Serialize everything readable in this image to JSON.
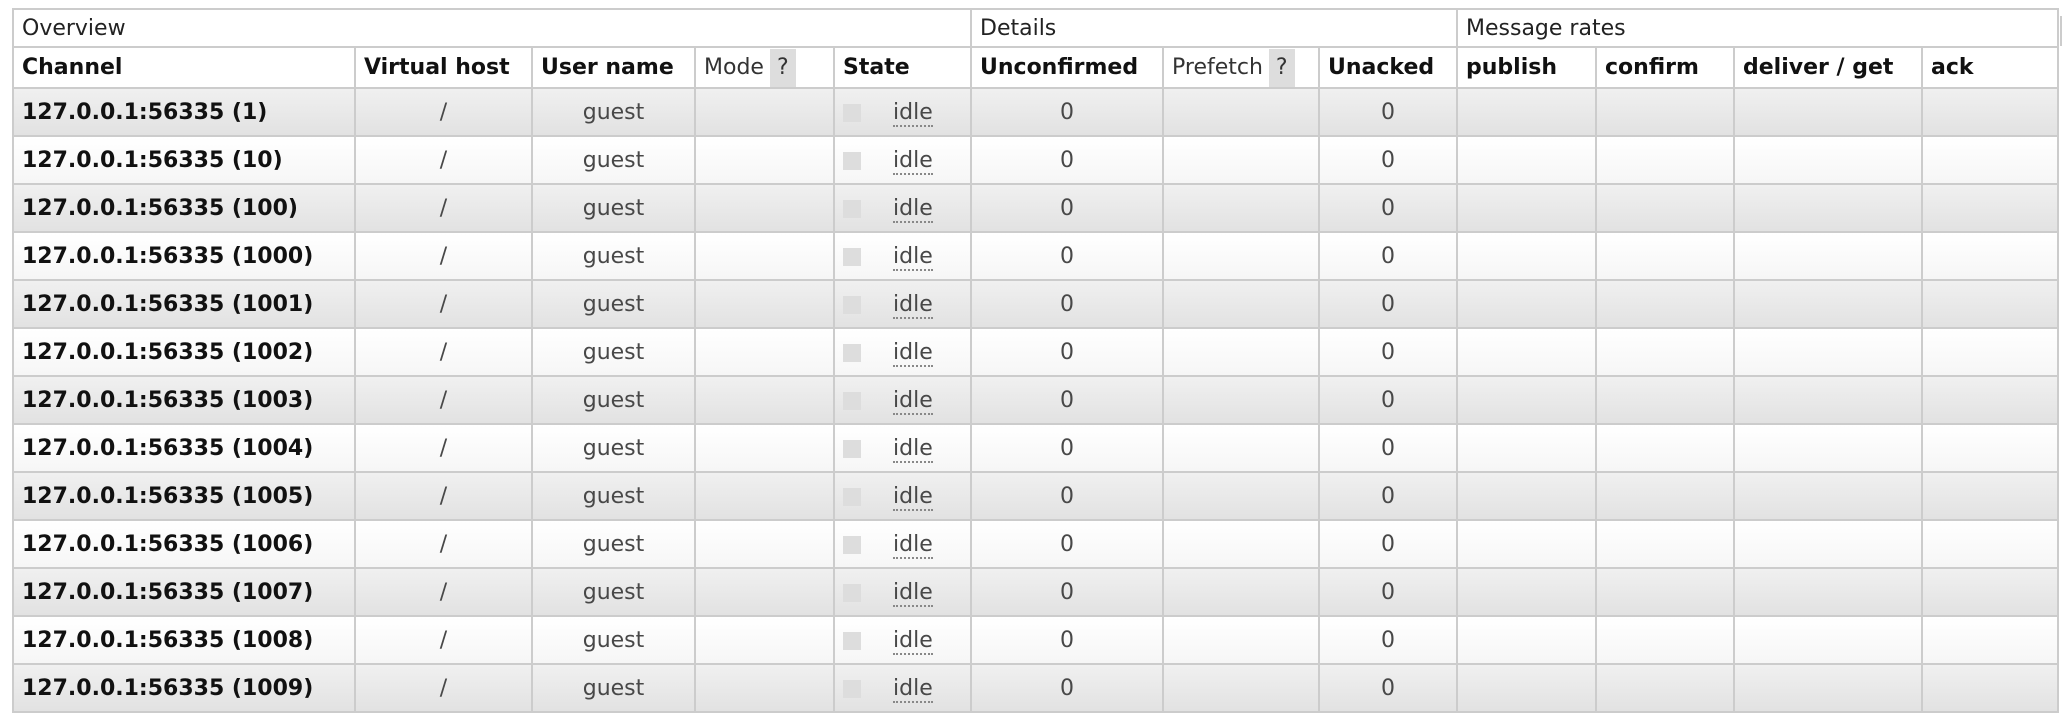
{
  "groups": {
    "overview": "Overview",
    "details": "Details",
    "message_rates": "Message rates"
  },
  "columns": {
    "channel": "Channel",
    "virtual_host": "Virtual host",
    "user_name": "User name",
    "mode": "Mode",
    "help": "?",
    "state": "State",
    "unconfirmed": "Unconfirmed",
    "prefetch": "Prefetch",
    "unacked": "Unacked",
    "publish": "publish",
    "confirm": "confirm",
    "deliver_get": "deliver / get",
    "ack": "ack"
  },
  "rows": [
    {
      "channel": "127.0.0.1:56335 (1)",
      "vhost": "/",
      "user": "guest",
      "mode": "",
      "state": "idle",
      "unconfirmed": "0",
      "prefetch": "",
      "unacked": "0"
    },
    {
      "channel": "127.0.0.1:56335 (10)",
      "vhost": "/",
      "user": "guest",
      "mode": "",
      "state": "idle",
      "unconfirmed": "0",
      "prefetch": "",
      "unacked": "0"
    },
    {
      "channel": "127.0.0.1:56335 (100)",
      "vhost": "/",
      "user": "guest",
      "mode": "",
      "state": "idle",
      "unconfirmed": "0",
      "prefetch": "",
      "unacked": "0"
    },
    {
      "channel": "127.0.0.1:56335 (1000)",
      "vhost": "/",
      "user": "guest",
      "mode": "",
      "state": "idle",
      "unconfirmed": "0",
      "prefetch": "",
      "unacked": "0"
    },
    {
      "channel": "127.0.0.1:56335 (1001)",
      "vhost": "/",
      "user": "guest",
      "mode": "",
      "state": "idle",
      "unconfirmed": "0",
      "prefetch": "",
      "unacked": "0"
    },
    {
      "channel": "127.0.0.1:56335 (1002)",
      "vhost": "/",
      "user": "guest",
      "mode": "",
      "state": "idle",
      "unconfirmed": "0",
      "prefetch": "",
      "unacked": "0"
    },
    {
      "channel": "127.0.0.1:56335 (1003)",
      "vhost": "/",
      "user": "guest",
      "mode": "",
      "state": "idle",
      "unconfirmed": "0",
      "prefetch": "",
      "unacked": "0"
    },
    {
      "channel": "127.0.0.1:56335 (1004)",
      "vhost": "/",
      "user": "guest",
      "mode": "",
      "state": "idle",
      "unconfirmed": "0",
      "prefetch": "",
      "unacked": "0"
    },
    {
      "channel": "127.0.0.1:56335 (1005)",
      "vhost": "/",
      "user": "guest",
      "mode": "",
      "state": "idle",
      "unconfirmed": "0",
      "prefetch": "",
      "unacked": "0"
    },
    {
      "channel": "127.0.0.1:56335 (1006)",
      "vhost": "/",
      "user": "guest",
      "mode": "",
      "state": "idle",
      "unconfirmed": "0",
      "prefetch": "",
      "unacked": "0"
    },
    {
      "channel": "127.0.0.1:56335 (1007)",
      "vhost": "/",
      "user": "guest",
      "mode": "",
      "state": "idle",
      "unconfirmed": "0",
      "prefetch": "",
      "unacked": "0"
    },
    {
      "channel": "127.0.0.1:56335 (1008)",
      "vhost": "/",
      "user": "guest",
      "mode": "",
      "state": "idle",
      "unconfirmed": "0",
      "prefetch": "",
      "unacked": "0"
    },
    {
      "channel": "127.0.0.1:56335 (1009)",
      "vhost": "/",
      "user": "guest",
      "mode": "",
      "state": "idle",
      "unconfirmed": "0",
      "prefetch": "",
      "unacked": "0"
    }
  ]
}
